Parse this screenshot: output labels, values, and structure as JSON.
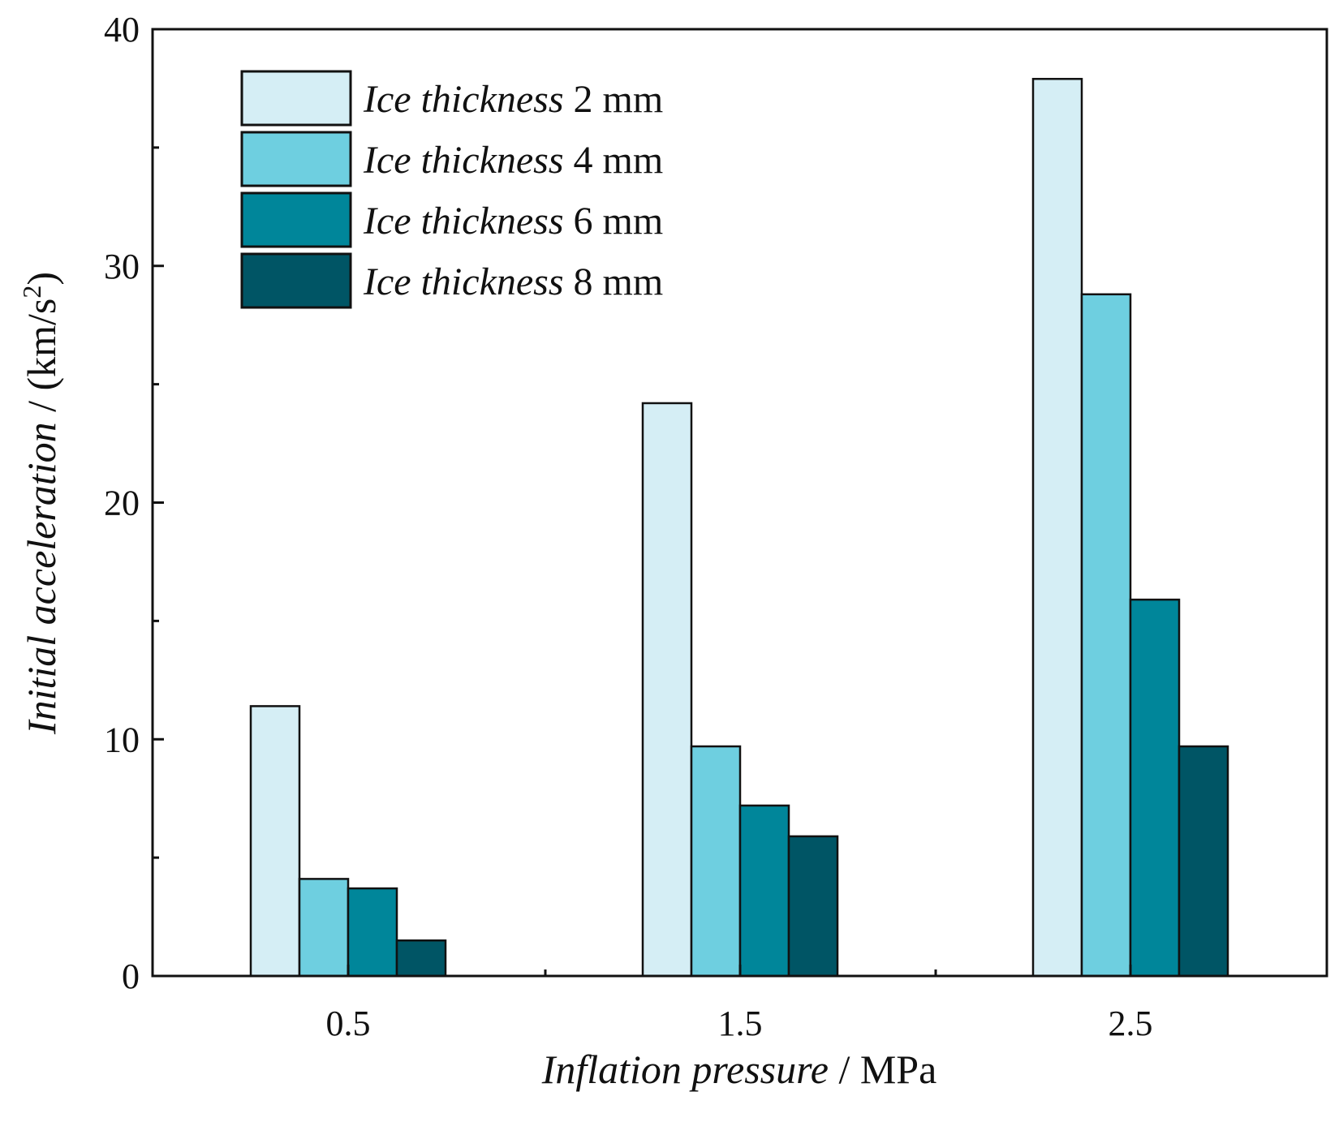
{
  "chart_data": {
    "type": "bar",
    "categories": [
      "0.5",
      "1.5",
      "2.5"
    ],
    "series": [
      {
        "name_italic": "Ice thickness",
        "name_suffix": "2 mm",
        "color": "#d5eef5",
        "values": [
          11.4,
          24.2,
          37.9
        ]
      },
      {
        "name_italic": "Ice thickness",
        "name_suffix": "4 mm",
        "color": "#6ecfe0",
        "values": [
          4.1,
          9.7,
          28.8
        ]
      },
      {
        "name_italic": "Ice thickness",
        "name_suffix": "6 mm",
        "color": "#00869a",
        "values": [
          3.7,
          7.2,
          15.9
        ]
      },
      {
        "name_italic": "Ice thickness",
        "name_suffix": "8 mm",
        "color": "#005565",
        "values": [
          1.5,
          5.9,
          9.7
        ]
      }
    ],
    "xlabel_italic": "Inflation pressure",
    "xlabel_suffix": " / MPa",
    "ylabel_italic": "Initial acceleration",
    "ylabel_suffix": " / (km/s",
    "ylabel_sup": "2",
    "ylabel_close": ")",
    "ylim": [
      0,
      40
    ],
    "yticks": [
      "0",
      "10",
      "20",
      "30",
      "40"
    ],
    "grid": false,
    "legend_position": "top-left"
  }
}
